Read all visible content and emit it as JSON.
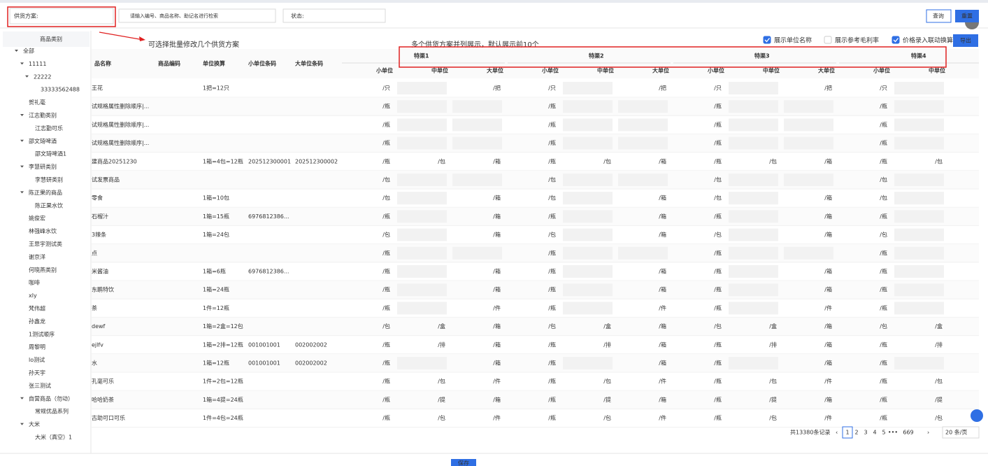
{
  "toolbar": {
    "supply_label": "供货方案:",
    "search_placeholder": "请输入编号、商品名称、助记名进行检索",
    "status_label": "状态:",
    "query": "查询",
    "reset": "重置"
  },
  "sidebar": {
    "title": "商品类别",
    "items": [
      "全部",
      "11111",
      "22222",
      "33333562488",
      "贺礼毫",
      "江志勤类别",
      "江志勤可乐",
      "邵文琦啤酒",
      "邵文琦啤酒1",
      "李慧研类别",
      "李慧研类别",
      "陈正果的商品",
      "陈正果水饮",
      "姚俊宏",
      "林强峰水饮",
      "王思宇测试类",
      "谢京洋",
      "何晓燕类别",
      "咖啡",
      "xly",
      "梵伟超",
      "孙鑫龙",
      "1测试顺序",
      "周黎明",
      "lo测试",
      "孙天宇",
      "张三测试",
      "自营商品（勿动）",
      "常规优品系列",
      "大米",
      "大米（真空）1"
    ]
  },
  "annotations": {
    "batch_note": "可选择批量修改几个供货方案",
    "channels_note": "多个供货方案并列展示，默认展示前10个"
  },
  "options": [
    {
      "label": "展示单位名称",
      "checked": true
    },
    {
      "label": "展示参考毛利率",
      "checked": false
    },
    {
      "label": "价格录入联动换算",
      "checked": true
    }
  ],
  "export": "导出",
  "table": {
    "columns": [
      "品名称",
      "商品编码",
      "单位换算",
      "小单位条码",
      "大单位条码"
    ],
    "channels": [
      "特渠1",
      "特渠2",
      "特渠3",
      "特渠4"
    ],
    "unit_headers": [
      "小单位",
      "中单位",
      "大单位"
    ],
    "rows": [
      {
        "name": "王花",
        "code": null,
        "conversion": "1把=12只",
        "small_barcode": null,
        "large_barcode": null,
        "units": [
          "/只",
          null,
          "/把"
        ]
      },
      {
        "name": "试规格属性删除顺序|...",
        "code": null,
        "conversion": null,
        "small_barcode": null,
        "large_barcode": null,
        "units": [
          "/瓶",
          null,
          null
        ]
      },
      {
        "name": "试规格属性删除顺序|...",
        "code": null,
        "conversion": null,
        "small_barcode": null,
        "large_barcode": null,
        "units": [
          "/瓶",
          null,
          null
        ]
      },
      {
        "name": "试规格属性删除顺序|...",
        "code": null,
        "conversion": null,
        "small_barcode": null,
        "large_barcode": null,
        "units": [
          "/瓶",
          null,
          null
        ]
      },
      {
        "name": "建商品20251230",
        "code": null,
        "conversion": "1箱=4包=12瓶",
        "small_barcode": "202512300001",
        "large_barcode": "202512300002",
        "units": [
          "/瓶",
          "/包",
          "/箱"
        ]
      },
      {
        "name": "试发票商品",
        "code": null,
        "conversion": null,
        "small_barcode": null,
        "large_barcode": null,
        "units": [
          "/包",
          null,
          null
        ]
      },
      {
        "name": "零食",
        "code": null,
        "conversion": "1箱=10包",
        "small_barcode": null,
        "large_barcode": null,
        "units": [
          "/包",
          null,
          "/箱"
        ]
      },
      {
        "name": "石榴汁",
        "code": null,
        "conversion": "1箱=15瓶",
        "small_barcode": "6976812386...",
        "large_barcode": null,
        "units": [
          "/瓶",
          null,
          "/箱"
        ]
      },
      {
        "name": "3辣条",
        "code": null,
        "conversion": "1箱=24包",
        "small_barcode": null,
        "large_barcode": null,
        "units": [
          "/包",
          null,
          "/箱"
        ]
      },
      {
        "name": "点",
        "code": null,
        "conversion": null,
        "small_barcode": null,
        "large_barcode": null,
        "units": [
          "/瓶",
          null,
          null
        ]
      },
      {
        "name": "米酱油",
        "code": null,
        "conversion": "1箱=6瓶",
        "small_barcode": "6976812386...",
        "large_barcode": null,
        "units": [
          "/瓶",
          null,
          "/箱"
        ]
      },
      {
        "name": "东鹏特饮",
        "code": null,
        "conversion": "1箱=24瓶",
        "small_barcode": null,
        "large_barcode": null,
        "units": [
          "/瓶",
          null,
          "/箱"
        ]
      },
      {
        "name": "茶",
        "code": null,
        "conversion": "1件=12瓶",
        "small_barcode": null,
        "large_barcode": null,
        "units": [
          "/瓶",
          null,
          "/件"
        ]
      },
      {
        "name": "dewf",
        "code": null,
        "conversion": "1箱=2盒=12包",
        "small_barcode": null,
        "large_barcode": null,
        "units": [
          "/包",
          "/盒",
          "/箱"
        ]
      },
      {
        "name": "ejlfv",
        "code": null,
        "conversion": "1箱=2排=12瓶",
        "small_barcode": "001001001",
        "large_barcode": "002002002",
        "units": [
          "/瓶",
          "/排",
          "/箱"
        ]
      },
      {
        "name": "水",
        "code": null,
        "conversion": "1箱=12瓶",
        "small_barcode": "001001001",
        "large_barcode": "002002002",
        "units": [
          "/瓶",
          null,
          "/箱"
        ]
      },
      {
        "name": "孔毫可乐",
        "code": null,
        "conversion": "1件=2包=12瓶",
        "small_barcode": null,
        "large_barcode": null,
        "units": [
          "/瓶",
          "/包",
          "/件"
        ]
      },
      {
        "name": "哈哈奶茶",
        "code": null,
        "conversion": "1箱=4提=24瓶",
        "small_barcode": null,
        "large_barcode": null,
        "units": [
          "/瓶",
          "/提",
          "/箱"
        ]
      },
      {
        "name": "古助可口可乐",
        "code": null,
        "conversion": "1件=4包=24瓶",
        "small_barcode": null,
        "large_barcode": null,
        "units": [
          "/瓶",
          "/包",
          "/件"
        ]
      }
    ]
  },
  "pagination": {
    "total": "共13380条记录",
    "pages": [
      "1",
      "2",
      "3",
      "4",
      "5",
      "•••",
      "669"
    ],
    "page_size": "20 条/页"
  },
  "save": "保存"
}
